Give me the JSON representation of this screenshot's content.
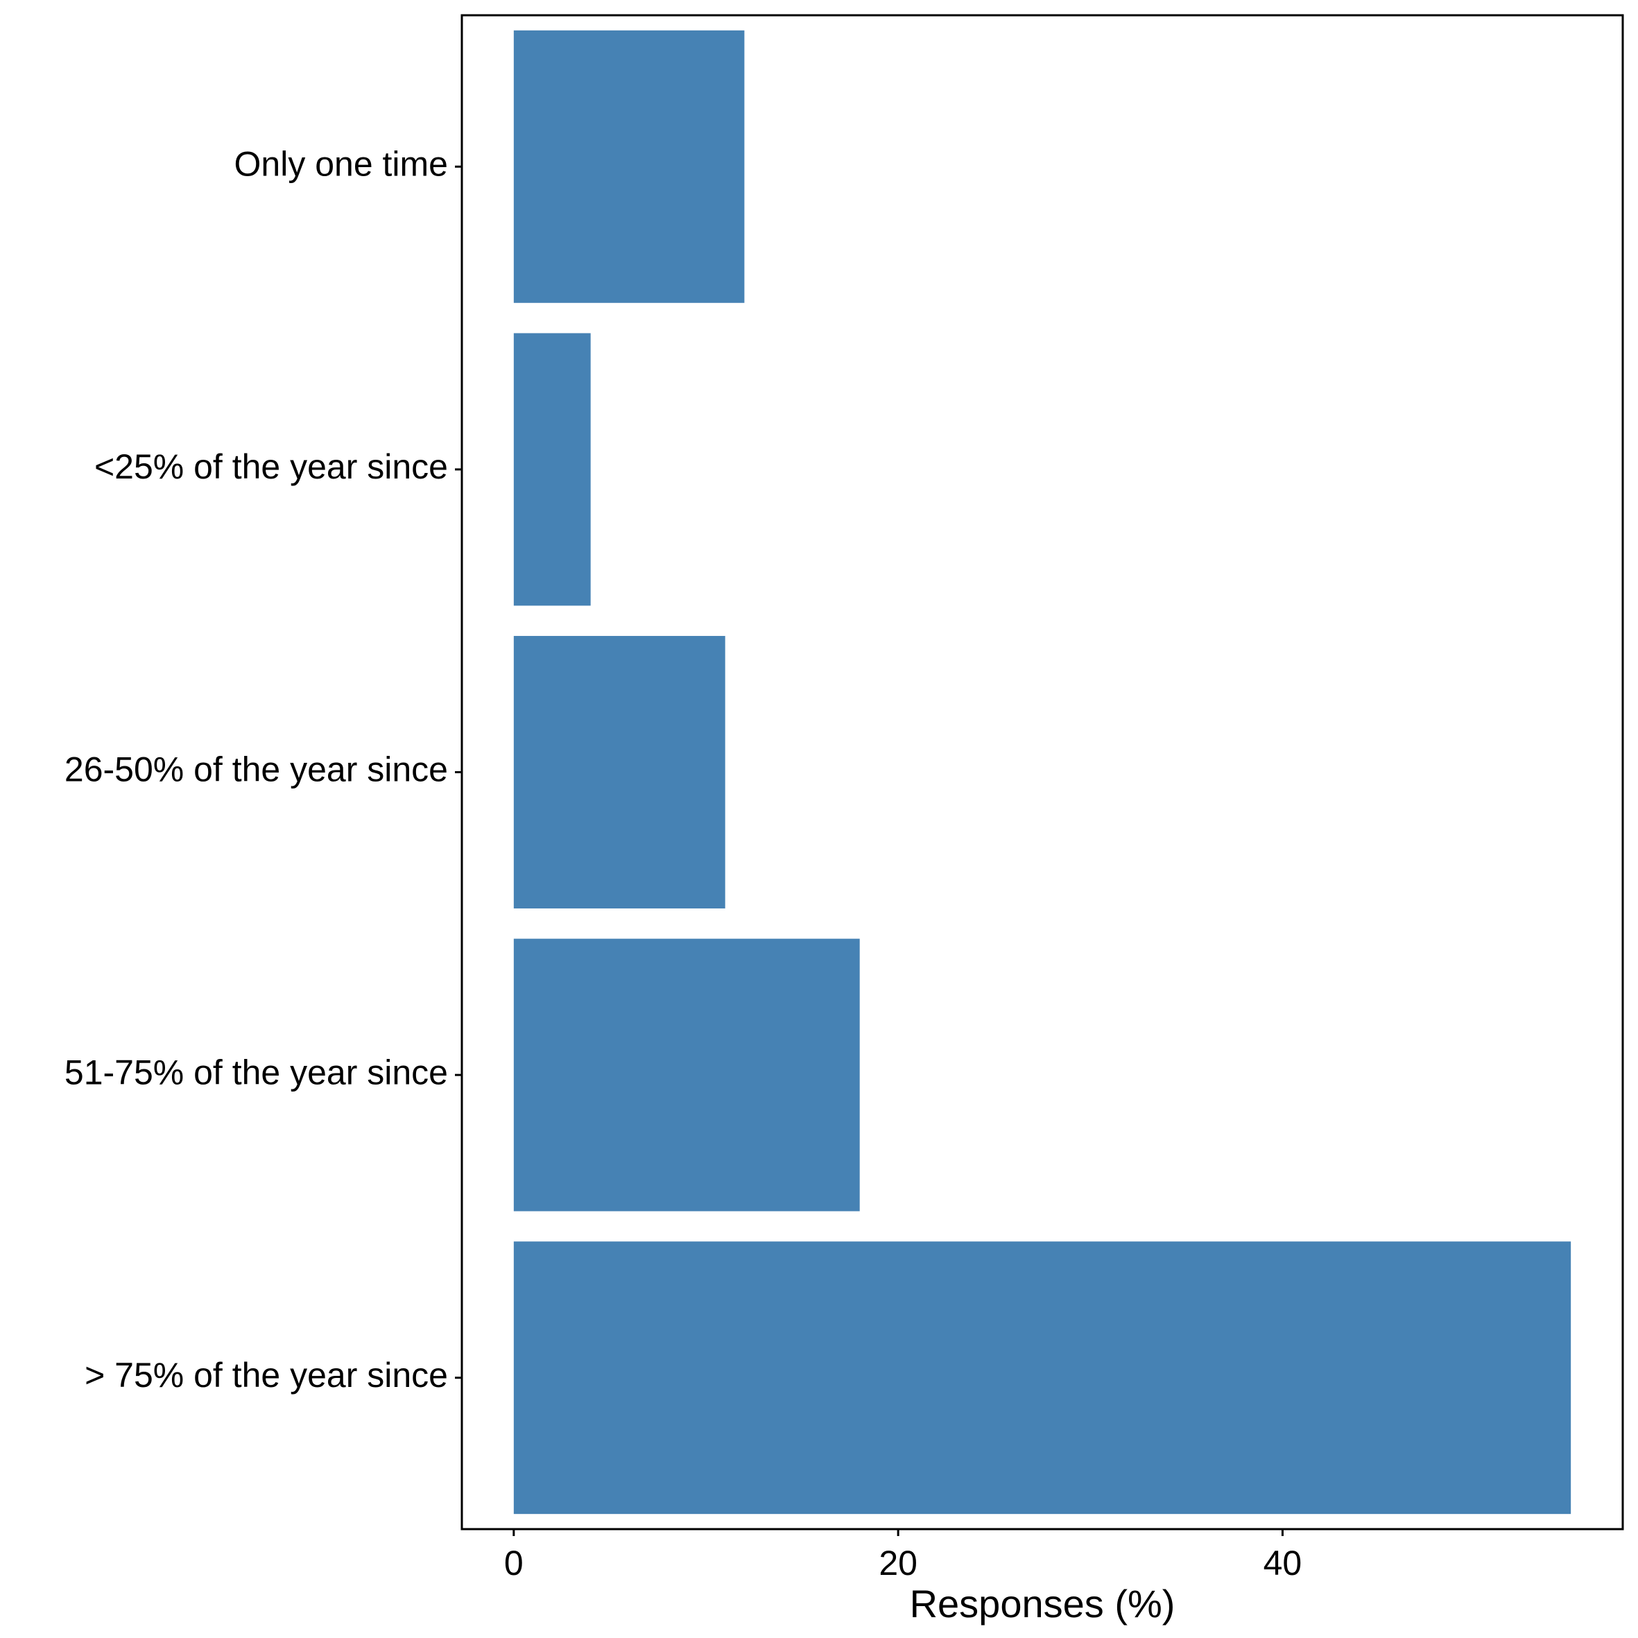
{
  "chart_data": {
    "type": "bar",
    "orientation": "horizontal",
    "categories": [
      "Only one time",
      "<25% of the year since",
      "26-50% of the year since",
      "51-75% of the year since",
      "> 75% of the year since"
    ],
    "values": [
      12,
      4,
      11,
      18,
      55
    ],
    "xlabel": "Responses (%)",
    "ylabel": "",
    "title": "",
    "xlim": [
      -2.7,
      57.7
    ],
    "xticks": [
      0,
      20,
      40
    ],
    "grid": false,
    "legend": "none",
    "bar_color": "#4682B4",
    "axis_color": "#000000"
  }
}
